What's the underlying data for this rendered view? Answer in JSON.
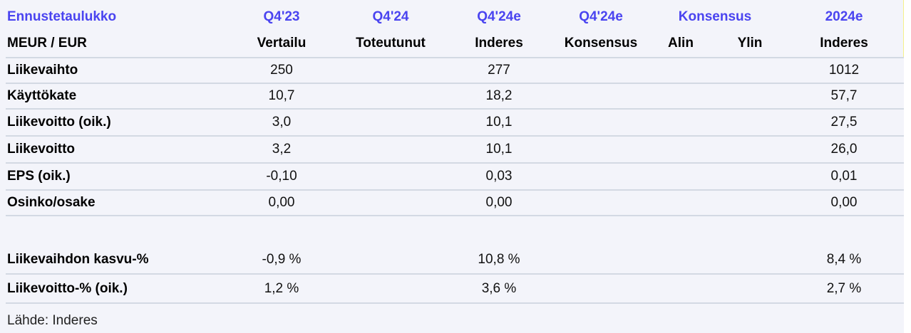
{
  "header": {
    "title": "Ennustetaulukko",
    "periods": [
      "Q4'23",
      "Q4'24",
      "Q4'24e",
      "Q4'24e",
      "Konsensus",
      "2024e"
    ],
    "unit": "MEUR / EUR",
    "subheaders": [
      "Vertailu",
      "Toteutunut",
      "Inderes",
      "Konsensus",
      "Alin",
      "Ylin",
      "Inderes"
    ]
  },
  "rows": [
    {
      "label": "Liikevaihto",
      "values": [
        "250",
        "",
        "277",
        "",
        "",
        "",
        "1012"
      ]
    },
    {
      "label": "Käyttökate",
      "values": [
        "10,7",
        "",
        "18,2",
        "",
        "",
        "",
        "57,7"
      ]
    },
    {
      "label": "Liikevoitto (oik.)",
      "values": [
        "3,0",
        "",
        "10,1",
        "",
        "",
        "",
        "27,5"
      ]
    },
    {
      "label": "Liikevoitto",
      "values": [
        "3,2",
        "",
        "10,1",
        "",
        "",
        "",
        "26,0"
      ]
    },
    {
      "label": "EPS (oik.)",
      "values": [
        "-0,10",
        "",
        "0,03",
        "",
        "",
        "",
        "0,01"
      ]
    },
    {
      "label": "Osinko/osake",
      "values": [
        "0,00",
        "",
        "0,00",
        "",
        "",
        "",
        "0,00"
      ]
    },
    {
      "label": "Liikevaihdon kasvu-%",
      "values": [
        "-0,9 %",
        "",
        "10,8 %",
        "",
        "",
        "",
        "8,4 %"
      ]
    },
    {
      "label": "Liikevoitto-% (oik.)",
      "values": [
        "1,2 %",
        "",
        "3,6 %",
        "",
        "",
        "",
        "2,7 %"
      ]
    }
  ],
  "source": "Lähde: Inderes"
}
